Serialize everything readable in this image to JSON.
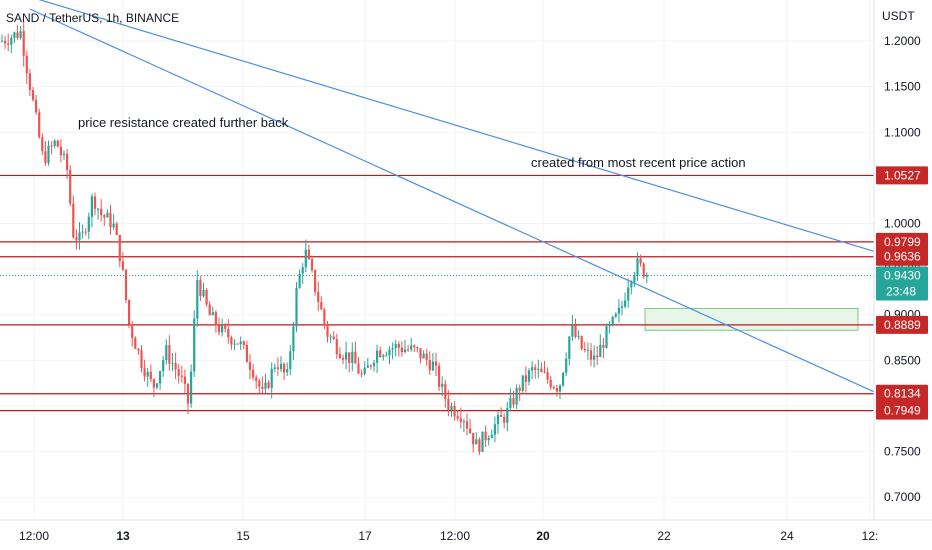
{
  "header": {
    "symbol_title": "SAND / TetherUS, 1h, BINANCE"
  },
  "y_axis": {
    "currency": "USDT"
  },
  "annotations": {
    "left": "price resistance created further back",
    "right": "created from most recent price action"
  },
  "price_tags": {
    "current_price": "0.9430",
    "countdown": "23:48"
  },
  "colors": {
    "up": "#26a69a",
    "down": "#ef5350",
    "level_line": "#b71c1c",
    "level_tag": "#c62828",
    "trendline": "#4a90e2",
    "current_tag": "#26a69a",
    "zone_fill": "#e8f5e9",
    "zone_border": "#66bb6a"
  },
  "chart_data": {
    "type": "candlestick",
    "title": "SAND / TetherUS, 1h, BINANCE",
    "ylim": [
      0.675,
      1.245
    ],
    "y_ticks": [
      "1.2000",
      "1.1500",
      "1.1000",
      "1.0500",
      "1.0000",
      "0.9500",
      "0.9000",
      "0.8500",
      "0.8000",
      "0.7500",
      "0.7000"
    ],
    "x_ticks": [
      {
        "label": "12:00",
        "bold": false
      },
      {
        "label": "13",
        "bold": true
      },
      {
        "label": "15",
        "bold": false
      },
      {
        "label": "17",
        "bold": false
      },
      {
        "label": "12:00",
        "bold": false
      },
      {
        "label": "20",
        "bold": true
      },
      {
        "label": "22",
        "bold": false
      },
      {
        "label": "24",
        "bold": false
      },
      {
        "label": "12:",
        "bold": false
      }
    ],
    "horizontal_levels": [
      1.0527,
      0.9799,
      0.9636,
      0.8889,
      0.8134,
      0.7949
    ],
    "horizontal_level_labels": [
      "1.0527",
      "0.9799",
      "0.9636",
      "0.8889",
      "0.8134",
      "0.7949"
    ],
    "current_price": 0.943,
    "price_path": [
      [
        0,
        1.2
      ],
      [
        20,
        1.21
      ],
      [
        26,
        1.17
      ],
      [
        34,
        1.12
      ],
      [
        42,
        1.07
      ],
      [
        55,
        1.09
      ],
      [
        66,
        1.06
      ],
      [
        72,
        0.99
      ],
      [
        80,
        0.98
      ],
      [
        92,
        1.03
      ],
      [
        100,
        1.01
      ],
      [
        112,
        1.0
      ],
      [
        120,
        0.96
      ],
      [
        128,
        0.89
      ],
      [
        140,
        0.85
      ],
      [
        152,
        0.82
      ],
      [
        165,
        0.86
      ],
      [
        180,
        0.83
      ],
      [
        188,
        0.8
      ],
      [
        196,
        0.94
      ],
      [
        208,
        0.9
      ],
      [
        222,
        0.88
      ],
      [
        238,
        0.87
      ],
      [
        252,
        0.84
      ],
      [
        262,
        0.81
      ],
      [
        275,
        0.85
      ],
      [
        286,
        0.83
      ],
      [
        296,
        0.93
      ],
      [
        304,
        0.97
      ],
      [
        314,
        0.93
      ],
      [
        326,
        0.88
      ],
      [
        340,
        0.86
      ],
      [
        352,
        0.85
      ],
      [
        362,
        0.83
      ],
      [
        375,
        0.86
      ],
      [
        395,
        0.865
      ],
      [
        415,
        0.86
      ],
      [
        432,
        0.845
      ],
      [
        440,
        0.82
      ],
      [
        448,
        0.8
      ],
      [
        462,
        0.79
      ],
      [
        476,
        0.755
      ],
      [
        490,
        0.775
      ],
      [
        505,
        0.79
      ],
      [
        518,
        0.82
      ],
      [
        532,
        0.84
      ],
      [
        546,
        0.83
      ],
      [
        558,
        0.82
      ],
      [
        570,
        0.885
      ],
      [
        582,
        0.86
      ],
      [
        594,
        0.85
      ],
      [
        606,
        0.88
      ],
      [
        620,
        0.905
      ],
      [
        628,
        0.94
      ],
      [
        636,
        0.955
      ],
      [
        648,
        0.943
      ]
    ]
  }
}
